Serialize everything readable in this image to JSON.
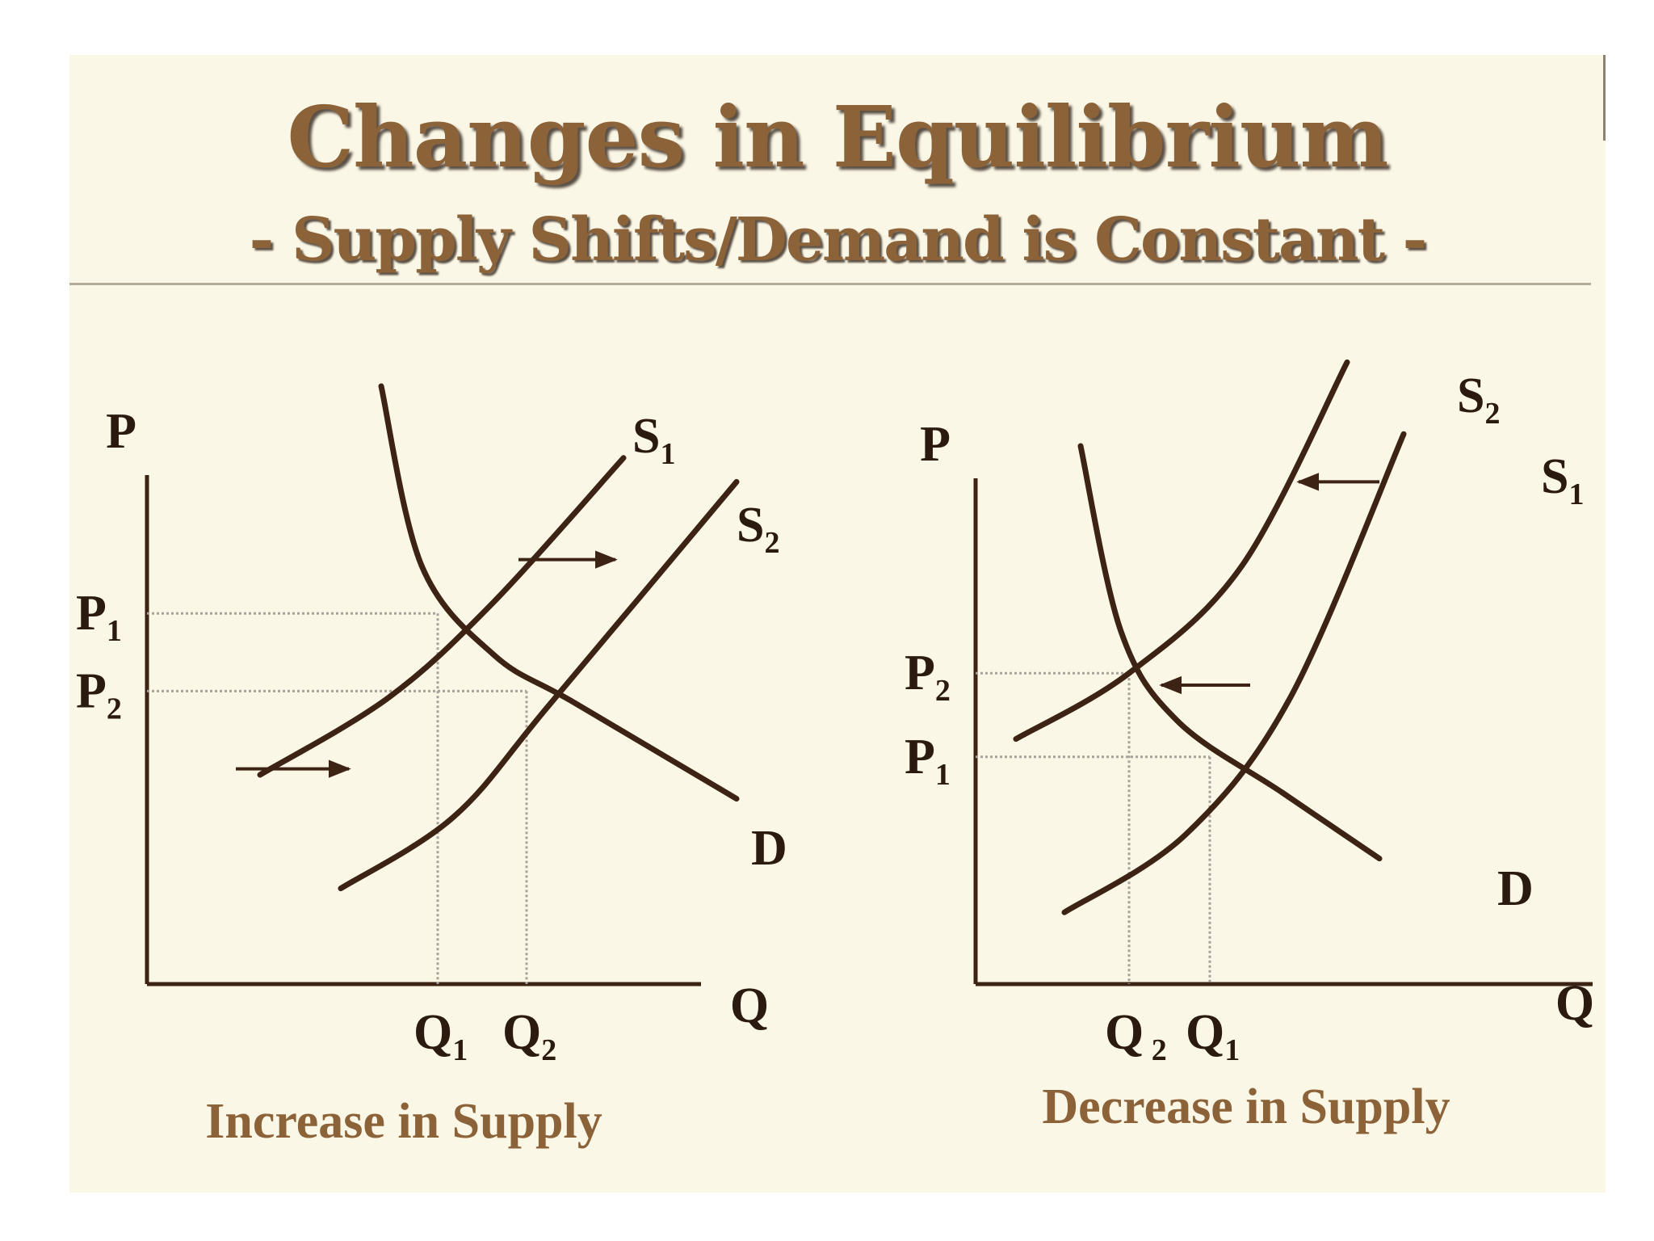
{
  "slide": {
    "title": "Changes in Equilibrium",
    "subtitle": "- Supply Shifts/Demand is Constant -",
    "colors": {
      "background": "#fbf7e6",
      "title": "#8c6239",
      "curve": "#3d2314",
      "guide": "#a8a29a"
    }
  },
  "chart_data": [
    {
      "type": "line",
      "caption": "Increase in Supply",
      "ylabel": "P",
      "xlabel": "Q",
      "series": [
        {
          "name": "S1",
          "label": {
            "main": "S",
            "sub": "1"
          },
          "x": [
            1.4,
            3.0,
            4.3,
            5.9
          ],
          "y": [
            3.5,
            4.8,
            6.4,
            8.8
          ]
        },
        {
          "name": "S2",
          "label": {
            "main": "S",
            "sub": "2"
          },
          "x": [
            2.4,
            3.8,
            5.0,
            7.3
          ],
          "y": [
            1.6,
            2.8,
            4.7,
            8.4
          ]
        },
        {
          "name": "D",
          "label": {
            "main": "D",
            "sub": ""
          },
          "x": [
            2.9,
            3.4,
            4.3,
            5.3,
            7.3
          ],
          "y": [
            10.0,
            7.0,
            5.5,
            4.7,
            3.1
          ]
        }
      ],
      "equilibria": [
        {
          "x": 3.6,
          "y": 6.2,
          "p_label": {
            "main": "P",
            "sub": "1"
          },
          "q_label": {
            "main": "Q",
            "sub": "1"
          }
        },
        {
          "x": 4.7,
          "y": 4.9,
          "p_label": {
            "main": "P",
            "sub": "2"
          },
          "q_label": {
            "main": "Q",
            "sub": "2"
          }
        }
      ],
      "arrows": [
        {
          "from": [
            4.6,
            7.1
          ],
          "to": [
            5.8,
            7.1
          ]
        },
        {
          "from": [
            1.1,
            3.6
          ],
          "to": [
            2.5,
            3.6
          ]
        }
      ],
      "axes_labels": {
        "p": "P",
        "q": "Q"
      }
    },
    {
      "type": "line",
      "caption": "Decrease in Supply",
      "ylabel": "P",
      "xlabel": "Q",
      "series": [
        {
          "name": "S2",
          "label": {
            "main": "S",
            "sub": "2"
          },
          "x": [
            0.5,
            1.9,
            3.3,
            4.6
          ],
          "y": [
            4.1,
            5.2,
            7.0,
            10.4
          ]
        },
        {
          "name": "S1",
          "label": {
            "main": "S",
            "sub": "1"
          },
          "x": [
            1.1,
            2.6,
            3.9,
            5.3
          ],
          "y": [
            1.2,
            2.5,
            4.8,
            9.2
          ]
        },
        {
          "name": "D",
          "label": {
            "main": "D",
            "sub": ""
          },
          "x": [
            1.3,
            1.8,
            2.5,
            3.8,
            5.0
          ],
          "y": [
            9.0,
            5.9,
            4.4,
            3.2,
            2.1
          ]
        }
      ],
      "equilibria": [
        {
          "x": 1.9,
          "y": 5.2,
          "p_label": {
            "main": "P",
            "sub": "2"
          },
          "q_label": {
            "main": "Q",
            "sub": " 2"
          }
        },
        {
          "x": 2.9,
          "y": 3.8,
          "p_label": {
            "main": "P",
            "sub": "1"
          },
          "q_label": {
            "main": "Q",
            "sub": "1"
          }
        }
      ],
      "arrows": [
        {
          "from": [
            5.0,
            8.4
          ],
          "to": [
            4.0,
            8.4
          ]
        },
        {
          "from": [
            3.4,
            5.0
          ],
          "to": [
            2.3,
            5.0
          ]
        }
      ],
      "axes_labels": {
        "p": "P",
        "q": "Q"
      }
    }
  ]
}
